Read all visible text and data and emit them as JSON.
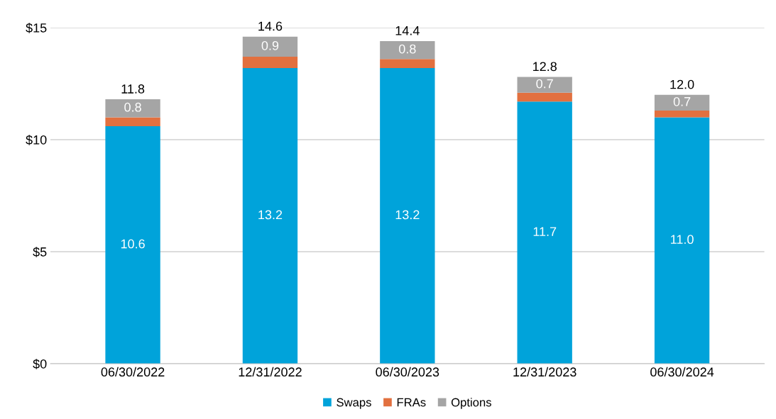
{
  "chart_data": {
    "type": "bar",
    "stacked": true,
    "categories": [
      "06/30/2022",
      "12/31/2022",
      "06/30/2023",
      "12/31/2023",
      "06/30/2024"
    ],
    "series": [
      {
        "name": "Swaps",
        "color": "#00a3da",
        "values": [
          10.6,
          13.2,
          13.2,
          11.7,
          11.0
        ],
        "value_labels": [
          "10.6",
          "13.2",
          "13.2",
          "11.7",
          "11.0"
        ]
      },
      {
        "name": "FRAs",
        "color": "#e2703f",
        "values": [
          0.4,
          0.5,
          0.4,
          0.4,
          0.3
        ]
      },
      {
        "name": "Options",
        "color": "#a5a5a5",
        "values": [
          0.8,
          0.9,
          0.8,
          0.7,
          0.7
        ],
        "value_labels": [
          "0.8",
          "0.9",
          "0.8",
          "0.7",
          "0.7"
        ]
      }
    ],
    "totals": [
      "11.8",
      "14.6",
      "14.4",
      "12.8",
      "12.0"
    ],
    "ylim": [
      0,
      15
    ],
    "yticks": [
      {
        "value": 0,
        "label": "$0"
      },
      {
        "value": 5,
        "label": "$5"
      },
      {
        "value": 10,
        "label": "$10"
      },
      {
        "value": 15,
        "label": "$15"
      }
    ],
    "grid": "y",
    "legend": "bottom"
  }
}
